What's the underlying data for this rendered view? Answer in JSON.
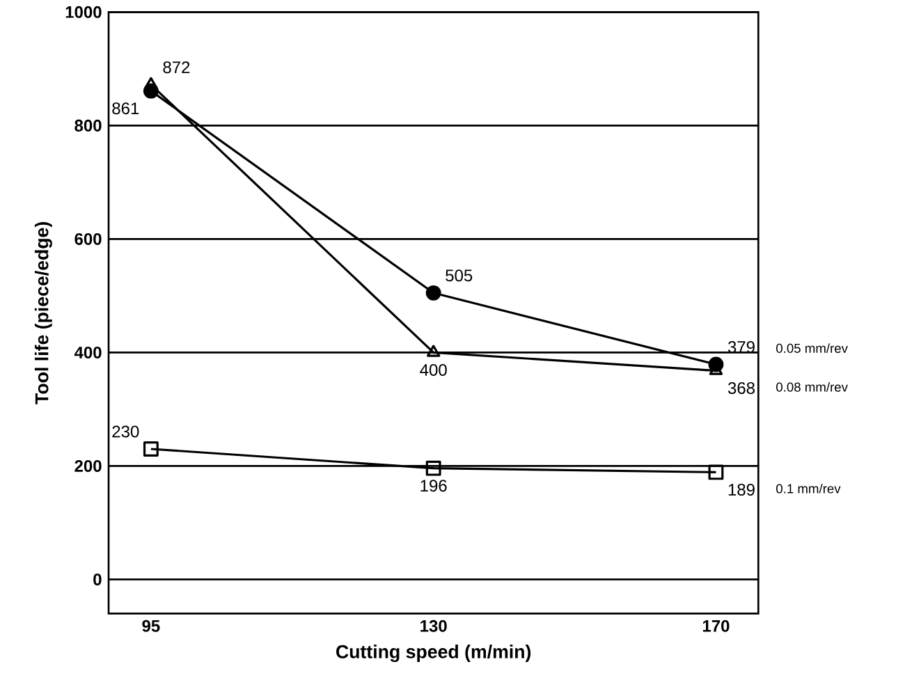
{
  "chart_data": {
    "type": "line",
    "xlabel": "Cutting speed (m/min)",
    "ylabel": "Tool life (piece/edge)",
    "categories": [
      "95",
      "130",
      "170"
    ],
    "series": [
      {
        "name": "0.05 mm/rev",
        "color": "#000000",
        "marker": "circle",
        "values": [
          861,
          505,
          379
        ]
      },
      {
        "name": "0.08 mm/rev",
        "color": "#000000",
        "marker": "triangle",
        "values": [
          872,
          400,
          368
        ]
      },
      {
        "name": "0.1 mm/rev",
        "color": "#000000",
        "marker": "square",
        "values": [
          230,
          196,
          189
        ]
      }
    ],
    "ylim": [
      -60,
      1000
    ],
    "yticks": [
      0,
      200,
      400,
      600,
      800,
      1000
    ],
    "grid": "y",
    "data_labels": true
  }
}
